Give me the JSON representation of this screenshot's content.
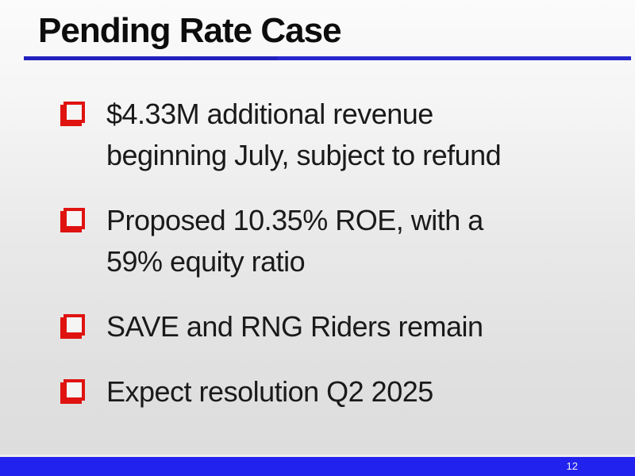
{
  "slide": {
    "title": "Pending Rate Case",
    "bullets": [
      {
        "text": "$4.33M additional revenue\nbeginning July, subject to refund"
      },
      {
        "text": "Proposed 10.35% ROE, with a\n59% equity ratio"
      },
      {
        "text": "SAVE and RNG Riders remain"
      },
      {
        "text": "Expect resolution Q2 2025"
      }
    ],
    "footer": {
      "page_number": "12"
    },
    "colors": {
      "title_text": "#0d0d0d",
      "body_text": "#1a1a1a",
      "title_rule_blue": "#2827cd",
      "footer_bar_blue": "#2222ee",
      "bullet_red": "#df1310",
      "background_top": "#fbfbfb",
      "background_bottom": "#dcdcdc"
    }
  }
}
